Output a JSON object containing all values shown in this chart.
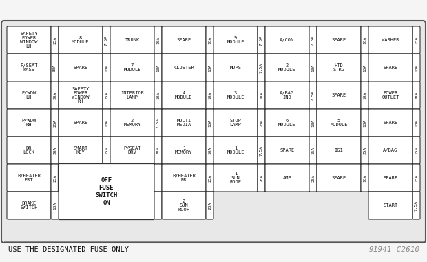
{
  "title": "USE THE DESIGNATED FUSE ONLY",
  "code": "91941-C2610",
  "bg_color": "#f5f5f5",
  "cell_bg": "#ffffff",
  "border_color": "#444444",
  "text_color": "#111111",
  "outer_bg": "#e8e8e8",
  "rows": [
    [
      {
        "label": "SAFETY\nPOWER\nWINDOW\nLH",
        "amp": "25A"
      },
      {
        "label": "8\nMODULE",
        "amp": "7.5A"
      },
      {
        "label": "TRUNK",
        "amp": "10A"
      },
      {
        "label": "SPARE",
        "amp": "10A"
      },
      {
        "label": "9\nMODULE",
        "amp": "7.5A"
      },
      {
        "label": "A/CON",
        "amp": "7.5A"
      },
      {
        "label": "SPARE",
        "amp": "10A"
      },
      {
        "label": "WASHER",
        "amp": "15A"
      }
    ],
    [
      {
        "label": "P/SEAT\nPASS",
        "amp": "30A"
      },
      {
        "label": "SPARE",
        "amp": "10A"
      },
      {
        "label": "7\nMODULE",
        "amp": "10A"
      },
      {
        "label": "CLUSTER",
        "amp": "10A"
      },
      {
        "label": "MDPS",
        "amp": "7.5A"
      },
      {
        "label": "2\nMODULE",
        "amp": "10A"
      },
      {
        "label": "HTD\nSTRG",
        "amp": "15A"
      },
      {
        "label": "SPARE",
        "amp": "10A"
      }
    ],
    [
      {
        "label": "P/WDW\nLH",
        "amp": "20A"
      },
      {
        "label": "SAFETY\nPOWER\nWINDOW\nRH",
        "amp": "25A"
      },
      {
        "label": "INTERIOR\nLAMP",
        "amp": "10A"
      },
      {
        "label": "4\nMODULE",
        "amp": "10A"
      },
      {
        "label": "3\nMODULE",
        "amp": "10A"
      },
      {
        "label": "A/BAG\nIND",
        "amp": "7.5A"
      },
      {
        "label": "SPARE",
        "amp": "10A"
      },
      {
        "label": "POWER\nOUTLET",
        "amp": "20A"
      }
    ],
    [
      {
        "label": "P/WDW\nRH",
        "amp": "25A"
      },
      {
        "label": "SPARE",
        "amp": "10A"
      },
      {
        "label": "2\nMEMORY",
        "amp": "7.5A"
      },
      {
        "label": "MULTI\nMEDIA",
        "amp": "15A"
      },
      {
        "label": "STOP\nLAMP",
        "amp": "20A"
      },
      {
        "label": "6\nMODULE",
        "amp": "10A"
      },
      {
        "label": "5\nMODULE",
        "amp": "10A"
      },
      {
        "label": "SPARE",
        "amp": "10A"
      }
    ],
    [
      {
        "label": "DR\nLOCK",
        "amp": "20A"
      },
      {
        "label": "SMART\nKEY",
        "amp": "15A"
      },
      {
        "label": "P/SEAT\nDRV",
        "amp": "30A"
      },
      {
        "label": "1\nMEMORY",
        "amp": "10A"
      },
      {
        "label": "1\nMODULE",
        "amp": "7.5A"
      },
      {
        "label": "SPARE",
        "amp": "15A"
      },
      {
        "label": "IG1",
        "amp": "25A"
      },
      {
        "label": "A/BAG",
        "amp": "15A"
      }
    ]
  ],
  "row5": [
    {
      "label": "B/HEATER\nFRT",
      "amp": "25A"
    },
    {
      "label": "FUSE_SWITCH",
      "amp": null,
      "span": 2
    },
    {
      "label": "B/HEATER\nRR",
      "amp": "25A"
    },
    {
      "label": "1\nSUN\nROOF",
      "amp": "20A"
    },
    {
      "label": "AMP",
      "amp": "25A"
    },
    {
      "label": "SPARE",
      "amp": "10A"
    },
    {
      "label": "SPARE",
      "amp": "15A"
    }
  ],
  "row6": [
    {
      "label": "BRAKE\nSWITCH",
      "amp": "10A",
      "col": 0
    },
    {
      "label": "2\nSUN\nROOF",
      "amp": "20A",
      "col": 3
    },
    {
      "label": "START",
      "amp": "7.5A",
      "col": 7
    }
  ],
  "fuse_switch_text": "OFF\nFUSE\nSWITCH\nON"
}
